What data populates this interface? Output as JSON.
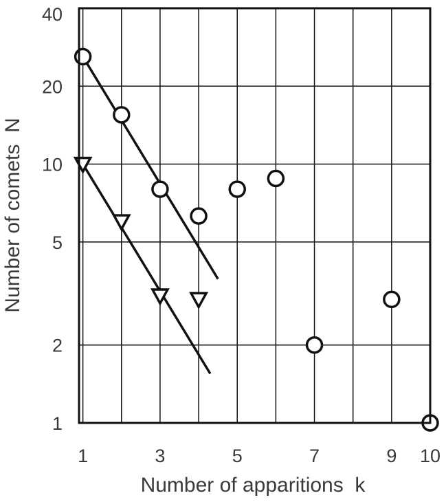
{
  "chart_data": {
    "type": "scatter",
    "title": "",
    "xlabel": "Number of apparitions  k",
    "ylabel": "Number of comets  N",
    "xlim": [
      0.9,
      10
    ],
    "ylim": [
      1,
      40
    ],
    "yscale": "log",
    "xticks": [
      "1",
      "3",
      "5",
      "7",
      "9",
      "10"
    ],
    "xtick_values": [
      1,
      3,
      5,
      7,
      9,
      10
    ],
    "yticks": [
      "1",
      "2",
      "5",
      "10",
      "20",
      "40"
    ],
    "ytick_values": [
      1,
      2,
      5,
      10,
      20,
      40
    ],
    "grid": true,
    "x_gridlines": [
      1,
      2,
      3,
      4,
      5,
      6,
      7,
      8,
      9
    ],
    "y_gridlines": [
      2,
      5,
      10,
      20
    ],
    "series": [
      {
        "marker": "circle",
        "x": [
          1,
          2,
          3,
          4,
          5,
          6,
          7,
          9,
          10
        ],
        "y": [
          26,
          15.5,
          8,
          6.3,
          8,
          8.8,
          2,
          3,
          1
        ],
        "fit_line": {
          "from": [
            1,
            26
          ],
          "to": [
            4.5,
            3.6
          ]
        }
      },
      {
        "marker": "triangle-down",
        "x": [
          1,
          2,
          3,
          4
        ],
        "y": [
          10,
          6,
          3.1,
          3
        ],
        "fit_line": {
          "from": [
            1,
            10
          ],
          "to": [
            4.3,
            1.55
          ]
        }
      }
    ]
  }
}
